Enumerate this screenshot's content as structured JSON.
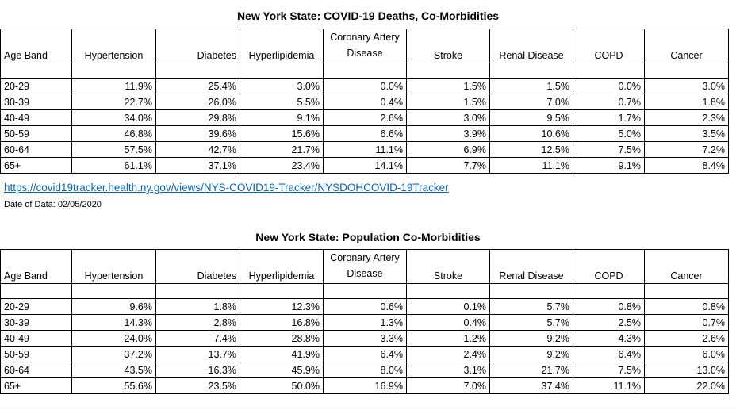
{
  "tables": [
    {
      "title": "New York State: COVID-19 Deaths, Co-Morbidities",
      "headers": [
        "Age Band",
        "Hypertension",
        "Diabetes",
        "Hyperlipidemia",
        "Coronary Artery Disease",
        "Stroke",
        "Renal Disease",
        "COPD",
        "Cancer"
      ],
      "rows": [
        [
          "20-29",
          "11.9%",
          "25.4%",
          "3.0%",
          "0.0%",
          "1.5%",
          "1.5%",
          "0.0%",
          "3.0%"
        ],
        [
          "30-39",
          "22.7%",
          "26.0%",
          "5.5%",
          "0.4%",
          "1.5%",
          "7.0%",
          "0.7%",
          "1.8%"
        ],
        [
          "40-49",
          "34.0%",
          "29.8%",
          "9.1%",
          "2.6%",
          "3.0%",
          "9.5%",
          "1.7%",
          "2.3%"
        ],
        [
          "50-59",
          "46.8%",
          "39.6%",
          "15.6%",
          "6.6%",
          "3.9%",
          "10.6%",
          "5.0%",
          "3.5%"
        ],
        [
          "60-64",
          "57.5%",
          "42.7%",
          "21.7%",
          "11.1%",
          "6.9%",
          "12.5%",
          "7.5%",
          "7.2%"
        ],
        [
          "65+",
          "61.1%",
          "37.1%",
          "23.4%",
          "14.1%",
          "7.7%",
          "11.1%",
          "9.1%",
          "8.4%"
        ]
      ]
    },
    {
      "title": "New York State: Population Co-Morbidities",
      "headers": [
        "Age Band",
        "Hypertension",
        "Diabetes",
        "Hyperlipidemia",
        "Coronary Artery Disease",
        "Stroke",
        "Renal Disease",
        "COPD",
        "Cancer"
      ],
      "rows": [
        [
          "20-29",
          "9.6%",
          "1.8%",
          "12.3%",
          "0.6%",
          "0.1%",
          "5.7%",
          "0.8%",
          "0.8%"
        ],
        [
          "30-39",
          "14.3%",
          "2.8%",
          "16.8%",
          "1.3%",
          "0.4%",
          "5.7%",
          "2.5%",
          "0.7%"
        ],
        [
          "40-49",
          "24.0%",
          "7.4%",
          "28.8%",
          "3.3%",
          "1.2%",
          "9.2%",
          "4.3%",
          "2.6%"
        ],
        [
          "50-59",
          "37.2%",
          "13.7%",
          "41.9%",
          "6.4%",
          "2.4%",
          "9.2%",
          "6.4%",
          "6.0%"
        ],
        [
          "60-64",
          "43.5%",
          "16.3%",
          "45.9%",
          "8.0%",
          "3.1%",
          "21.7%",
          "7.5%",
          "13.0%"
        ],
        [
          "65+",
          "55.6%",
          "23.5%",
          "50.0%",
          "16.9%",
          "7.0%",
          "37.4%",
          "11.1%",
          "22.0%"
        ]
      ]
    }
  ],
  "source_link": "https://covid19tracker.health.ny.gov/views/NYS-COVID19-Tracker/NYSDOHCOVID-19Tracker",
  "date_of_data": "Date of Data: 02/05/2020"
}
